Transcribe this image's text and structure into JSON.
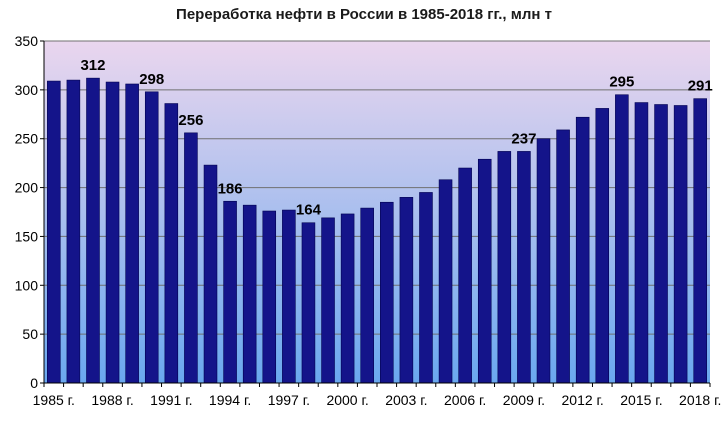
{
  "chart_data": {
    "type": "bar",
    "title": "Переработка нефти в России в 1985-2018 гг., млн т",
    "xlabel": "",
    "ylabel": "",
    "ylim": [
      0,
      350
    ],
    "yticks": [
      0,
      50,
      100,
      150,
      200,
      250,
      300,
      350
    ],
    "grid": true,
    "categories": [
      "1985 г.",
      "1986 г.",
      "1987 г.",
      "1988 г.",
      "1989 г.",
      "1990 г.",
      "1991 г.",
      "1992 г.",
      "1993 г.",
      "1994 г.",
      "1995 г.",
      "1996 г.",
      "1997 г.",
      "1998 г.",
      "1999 г.",
      "2000 г.",
      "2001 г.",
      "2002 г.",
      "2003 г.",
      "2004 г.",
      "2005 г.",
      "2006 г.",
      "2007 г.",
      "2008 г.",
      "2009 г.",
      "2010 г.",
      "2011 г.",
      "2012 г.",
      "2013 г.",
      "2014 г.",
      "2015 г.",
      "2016 г.",
      "2017 г.",
      "2018 г."
    ],
    "values": [
      309,
      310,
      312,
      308,
      306,
      298,
      286,
      256,
      223,
      186,
      182,
      176,
      177,
      164,
      169,
      173,
      179,
      185,
      190,
      195,
      208,
      220,
      229,
      237,
      237,
      250,
      259,
      272,
      281,
      295,
      287,
      285,
      284,
      291
    ],
    "tick_labels": [
      "1985 г.",
      "1988 г.",
      "1991 г.",
      "1994 г.",
      "1997 г.",
      "2000 г.",
      "2003 г.",
      "2006 г.",
      "2009 г.",
      "2012 г.",
      "2015 г.",
      "2018 г."
    ],
    "data_labels": [
      {
        "category": "1987 г.",
        "text": "312"
      },
      {
        "category": "1990 г.",
        "text": "298"
      },
      {
        "category": "1992 г.",
        "text": "256"
      },
      {
        "category": "1994 г.",
        "text": "186"
      },
      {
        "category": "1998 г.",
        "text": "164"
      },
      {
        "category": "2009 г.",
        "text": "237"
      },
      {
        "category": "2014 г.",
        "text": "295"
      },
      {
        "category": "2018 г.",
        "text": "291"
      }
    ],
    "colors": {
      "bar": "#14148a",
      "bar_edge": "#000050",
      "bg_top": "#ead6ee",
      "bg_bottom": "#6aa8ef",
      "grid": "#707070"
    }
  }
}
